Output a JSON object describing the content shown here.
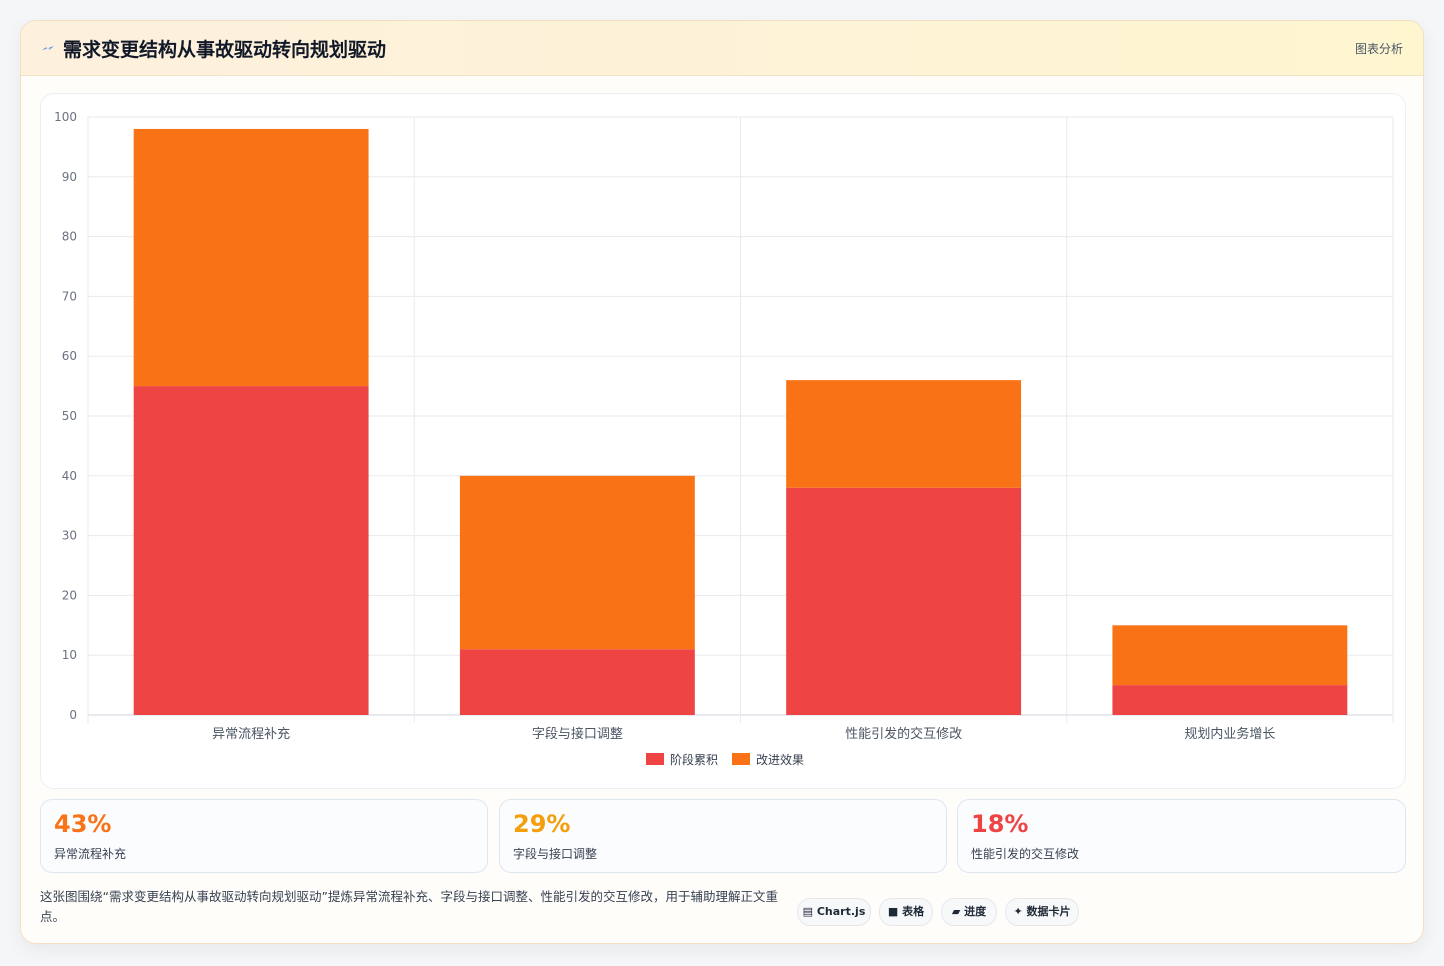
{
  "header": {
    "icon": "lightning-icon",
    "title": "需求变更结构从事故驱动转向规划驱动",
    "tag": "图表分析"
  },
  "chart_data": {
    "type": "bar",
    "stacked": true,
    "categories": [
      "异常流程补充",
      "字段与接口调整",
      "性能引发的交互修改",
      "规划内业务增长"
    ],
    "series": [
      {
        "name": "阶段累积",
        "color": "#ef4444",
        "values": [
          55,
          11,
          38,
          5
        ]
      },
      {
        "name": "改进效果",
        "color": "#f97316",
        "values": [
          43,
          29,
          18,
          10
        ]
      }
    ],
    "ylim": [
      0,
      100
    ],
    "yticks": [
      0,
      10,
      20,
      30,
      40,
      50,
      60,
      70,
      80,
      90,
      100
    ],
    "grid": true,
    "legend": "bottom"
  },
  "stats": [
    {
      "value": "43%",
      "label": "异常流程补充",
      "color": "#f97316"
    },
    {
      "value": "29%",
      "label": "字段与接口调整",
      "color": "#f59e0b"
    },
    {
      "value": "18%",
      "label": "性能引发的交互修改",
      "color": "#ef4444"
    }
  ],
  "footer": {
    "description": "这张图围绕“需求变更结构从事故驱动转向规划驱动”提炼异常流程补充、字段与接口调整、性能引发的交互修改，用于辅助理解正文重点。",
    "chips": [
      {
        "icon": "chart-icon",
        "glyph": "▤",
        "label": "Chart.js"
      },
      {
        "icon": "table-icon",
        "glyph": "■",
        "label": "表格"
      },
      {
        "icon": "progress-icon",
        "glyph": "▰",
        "label": "进度"
      },
      {
        "icon": "sparkle-icon",
        "glyph": "✦",
        "label": "数据卡片"
      }
    ]
  }
}
